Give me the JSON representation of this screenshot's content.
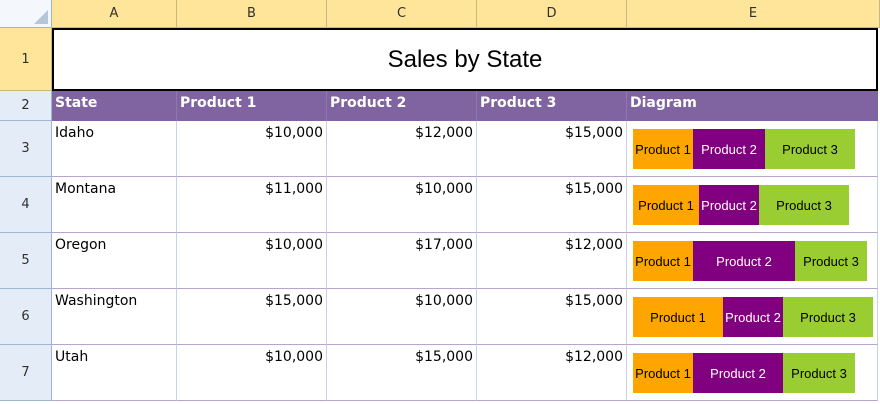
{
  "columns": [
    "A",
    "B",
    "C",
    "D",
    "E"
  ],
  "rows": [
    "1",
    "2",
    "3",
    "4",
    "5",
    "6",
    "7"
  ],
  "title": "Sales by State",
  "headers": [
    "State",
    "Product 1",
    "Product 2",
    "Product 3",
    "Diagram"
  ],
  "series_labels": [
    "Product 1",
    "Product 2",
    "Product 3"
  ],
  "colors": {
    "product1": "#ffa500",
    "product2": "#800080",
    "product3": "#9acd32",
    "header_band": "#8064a2"
  },
  "data": [
    {
      "state": "Idaho",
      "p1": "$10,000",
      "p2": "$12,000",
      "p3": "$15,000",
      "v": [
        10000,
        12000,
        15000
      ]
    },
    {
      "state": "Montana",
      "p1": "$11,000",
      "p2": "$10,000",
      "p3": "$15,000",
      "v": [
        11000,
        10000,
        15000
      ]
    },
    {
      "state": "Oregon",
      "p1": "$10,000",
      "p2": "$17,000",
      "p3": "$12,000",
      "v": [
        10000,
        17000,
        12000
      ]
    },
    {
      "state": "Washington",
      "p1": "$15,000",
      "p2": "$10,000",
      "p3": "$15,000",
      "v": [
        15000,
        10000,
        15000
      ]
    },
    {
      "state": "Utah",
      "p1": "$10,000",
      "p2": "$15,000",
      "p3": "$12,000",
      "v": [
        10000,
        15000,
        12000
      ]
    }
  ]
}
